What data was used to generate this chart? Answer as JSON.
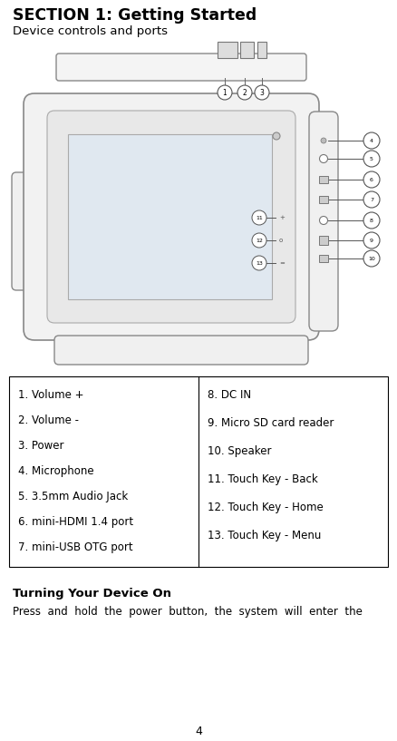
{
  "bg_color": "#ffffff",
  "title": "SECTION 1: Getting Started",
  "subtitle": "Device controls and ports",
  "left_col": [
    "1. Volume +",
    "2. Volume -",
    "3. Power",
    "4. Microphone",
    "5. 3.5mm Audio Jack",
    "6. mini-HDMI 1.4 port",
    "7. mini-USB OTG port"
  ],
  "right_col": [
    "8. DC IN",
    "9. Micro SD card reader",
    "10. Speaker",
    "11. Touch Key - Back",
    "12. Touch Key - Home",
    "13. Touch Key - Menu"
  ],
  "turning_on_heading": "Turning Your Device On",
  "turning_on_text": "Press  and  hold  the  power  button,  the  system  will  enter  the",
  "page_number": "4"
}
